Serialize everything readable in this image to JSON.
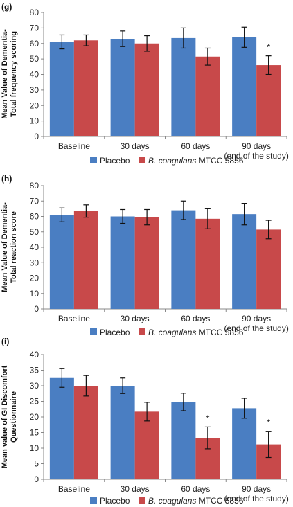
{
  "colors": {
    "placebo": "#4A7EC2",
    "treatment": "#C8494A",
    "axis": "#888888",
    "error": "#111111"
  },
  "legend": {
    "placebo": "Placebo",
    "treatment_italic": "B. coagulans",
    "treatment_rest": " MTCC 5856"
  },
  "chart_data": [
    {
      "type": "bar",
      "panel": "(g)",
      "ylabel": [
        "Mean Value of Dementia-",
        "Total frequency scoring"
      ],
      "categories": [
        "Baseline",
        "30 days",
        "60 days",
        "90 days"
      ],
      "category_sublabels": [
        "",
        "",
        "",
        "(end of the study)"
      ],
      "ylim": [
        0,
        80
      ],
      "yticks": [
        0,
        10,
        20,
        30,
        40,
        50,
        60,
        70,
        80
      ],
      "series": [
        {
          "name": "Placebo",
          "values": [
            61,
            63,
            63.5,
            64
          ],
          "errors": [
            4.5,
            5,
            6.5,
            6.5
          ]
        },
        {
          "name": "B. coagulans MTCC 5856",
          "values": [
            62,
            60,
            51.5,
            46
          ],
          "errors": [
            3.5,
            5,
            5.5,
            6
          ]
        }
      ],
      "annotations": [
        {
          "category": 3,
          "series": 1,
          "text": "*"
        }
      ]
    },
    {
      "type": "bar",
      "panel": "(h)",
      "ylabel": [
        "Mean Value of Dementia-",
        "Total reaction score"
      ],
      "categories": [
        "Baseline",
        "30 days",
        "60 days",
        "90 days"
      ],
      "category_sublabels": [
        "",
        "",
        "",
        "(end of the study)"
      ],
      "ylim": [
        0,
        80
      ],
      "yticks": [
        0,
        10,
        20,
        30,
        40,
        50,
        60,
        70,
        80
      ],
      "series": [
        {
          "name": "Placebo",
          "values": [
            61,
            60,
            64,
            61.5
          ],
          "errors": [
            4.5,
            4.5,
            6,
            7
          ]
        },
        {
          "name": "B. coagulans MTCC 5856",
          "values": [
            63.5,
            59.5,
            58.5,
            51.5
          ],
          "errors": [
            4,
            5,
            6.5,
            6
          ]
        }
      ],
      "annotations": []
    },
    {
      "type": "bar",
      "panel": "(i)",
      "ylabel": [
        "Mean value of GI Discomfort",
        "Questionnaire"
      ],
      "categories": [
        "Baseline",
        "30 days",
        "60 days",
        "90 days"
      ],
      "category_sublabels": [
        "",
        "",
        "",
        "(end of the study)"
      ],
      "ylim": [
        0,
        40
      ],
      "yticks": [
        0,
        5,
        10,
        15,
        20,
        25,
        30,
        35,
        40
      ],
      "series": [
        {
          "name": "Placebo",
          "values": [
            32.5,
            30,
            24.8,
            22.8
          ],
          "errors": [
            3,
            2.5,
            2.8,
            3.2
          ]
        },
        {
          "name": "B. coagulans MTCC 5856",
          "values": [
            30,
            21.7,
            13.3,
            11.2
          ],
          "errors": [
            3.3,
            3,
            3.5,
            4.2
          ]
        }
      ],
      "annotations": [
        {
          "category": 2,
          "series": 1,
          "text": "*"
        },
        {
          "category": 3,
          "series": 1,
          "text": "*"
        }
      ]
    }
  ]
}
